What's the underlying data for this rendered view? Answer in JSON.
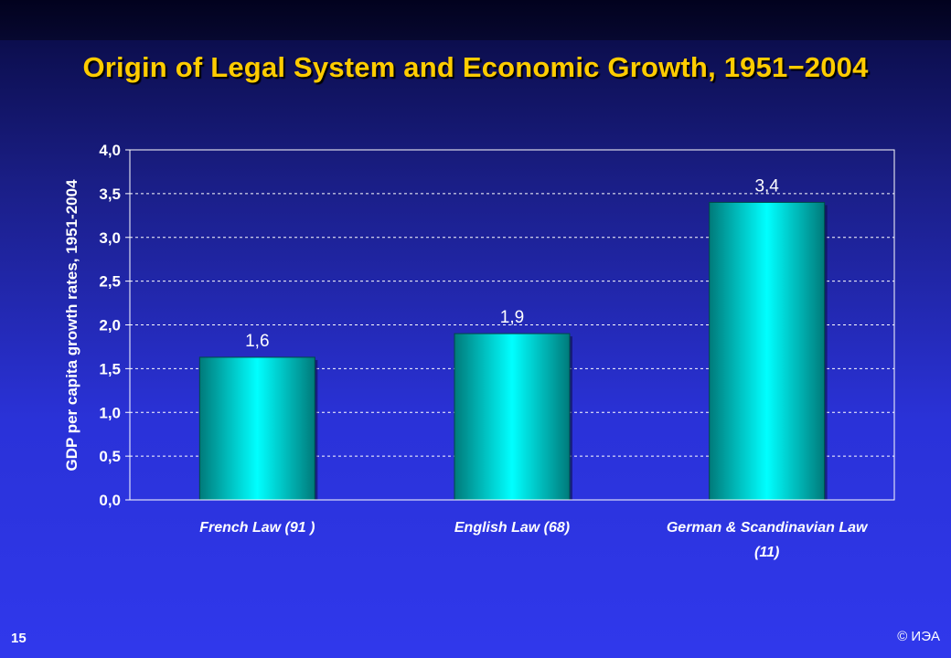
{
  "slide": {
    "title": "Origin of Legal System and Economic Growth, 1951−2004",
    "page_number": "15",
    "copyright": "© ИЭА"
  },
  "colors": {
    "title": "#ffcc00",
    "bar_center": "#00ffff",
    "bar_edge": "#007a7a",
    "text": "#ffffff"
  },
  "chart_data": {
    "type": "bar",
    "title": "Origin of Legal System and Economic Growth, 1951−2004",
    "ylabel": "GDP per capita growth rates, 1951-2004",
    "xlabel": "",
    "categories": [
      [
        "French Law (91 )"
      ],
      [
        "English Law (68)"
      ],
      [
        "German & Scandinavian Law",
        "(11)"
      ]
    ],
    "values": [
      1.63,
      1.9,
      3.4
    ],
    "value_labels": [
      "1,6",
      "1,9",
      "3,4"
    ],
    "ylim": [
      0,
      4
    ],
    "yticks": [
      "0,0",
      "0,5",
      "1,0",
      "1,5",
      "2,0",
      "2,5",
      "3,0",
      "3,5",
      "4,0"
    ],
    "grid": true,
    "legend": "none"
  }
}
